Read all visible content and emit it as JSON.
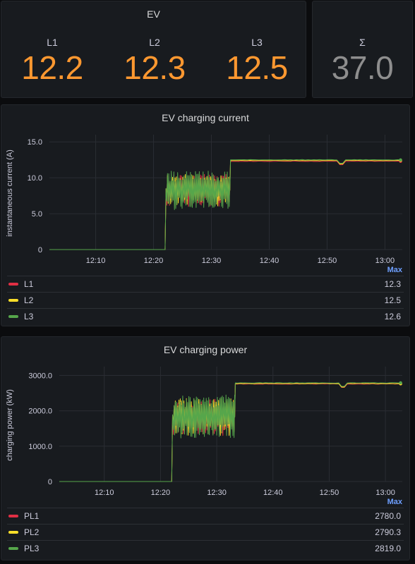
{
  "ev_panel": {
    "title": "EV",
    "stats": [
      {
        "label": "L1",
        "value": "12.2"
      },
      {
        "label": "L2",
        "value": "12.3"
      },
      {
        "label": "L3",
        "value": "12.5"
      }
    ]
  },
  "sum_panel": {
    "label": "Σ",
    "value": "37.0"
  },
  "colors": {
    "L1": "#e02f44",
    "L2": "#fade2a",
    "L3": "#56a64b",
    "orange": "#ff9830"
  },
  "current_panel": {
    "title": "EV charging current",
    "legend_header": "Max",
    "legend": [
      {
        "name": "L1",
        "max": "12.3"
      },
      {
        "name": "L2",
        "max": "12.5"
      },
      {
        "name": "L3",
        "max": "12.6"
      }
    ]
  },
  "power_panel": {
    "title": "EV charging power",
    "legend_header": "Max",
    "legend": [
      {
        "name": "PL1",
        "max": "2780.0"
      },
      {
        "name": "PL2",
        "max": "2790.3"
      },
      {
        "name": "PL3",
        "max": "2819.0"
      }
    ]
  },
  "chart_data": [
    {
      "type": "line",
      "title": "EV charging current",
      "ylabel": "instantaneous current (A)",
      "ylim": [
        0,
        16
      ],
      "yticks": [
        "0",
        "5.0",
        "10.0",
        "15.0"
      ],
      "ytick_values": [
        0,
        5,
        10,
        15
      ],
      "xticks": [
        "12:10",
        "12:20",
        "12:30",
        "12:40",
        "12:50",
        "13:00"
      ],
      "xtick_minutes": [
        10,
        20,
        30,
        40,
        50,
        60
      ],
      "xlim_minutes": [
        2,
        63
      ],
      "grid": true,
      "legend_placement": "bottom",
      "series": [
        {
          "name": "L1",
          "idle": 0,
          "ramp_start": 22,
          "fluct_low": 6,
          "fluct_high": 10.5,
          "step_at": 33.2,
          "plateau": 12.3
        },
        {
          "name": "L2",
          "idle": 0,
          "ramp_start": 22,
          "fluct_low": 6,
          "fluct_high": 10.5,
          "step_at": 33.2,
          "plateau": 12.4
        },
        {
          "name": "L3",
          "idle": 0,
          "ramp_start": 22,
          "fluct_low": 5.5,
          "fluct_high": 11,
          "step_at": 33.2,
          "plateau": 12.5
        }
      ]
    },
    {
      "type": "line",
      "title": "EV charging power",
      "ylabel": "charging power (kW)",
      "ylim": [
        0,
        3250
      ],
      "yticks": [
        "0",
        "1000.0",
        "2000.0",
        "3000.0"
      ],
      "ytick_values": [
        0,
        1000,
        2000,
        3000
      ],
      "xticks": [
        "12:10",
        "12:20",
        "12:30",
        "12:40",
        "12:50",
        "13:00"
      ],
      "xtick_minutes": [
        10,
        20,
        30,
        40,
        50,
        60
      ],
      "xlim_minutes": [
        2,
        63
      ],
      "grid": true,
      "legend_placement": "bottom",
      "series": [
        {
          "name": "PL1",
          "idle": 0,
          "ramp_start": 22,
          "fluct_low": 1300,
          "fluct_high": 2350,
          "step_at": 33.2,
          "plateau": 2760
        },
        {
          "name": "PL2",
          "idle": 0,
          "ramp_start": 22,
          "fluct_low": 1300,
          "fluct_high": 2350,
          "step_at": 33.2,
          "plateau": 2770
        },
        {
          "name": "PL3",
          "idle": 0,
          "ramp_start": 22,
          "fluct_low": 1200,
          "fluct_high": 2450,
          "step_at": 33.2,
          "plateau": 2790
        }
      ]
    }
  ]
}
